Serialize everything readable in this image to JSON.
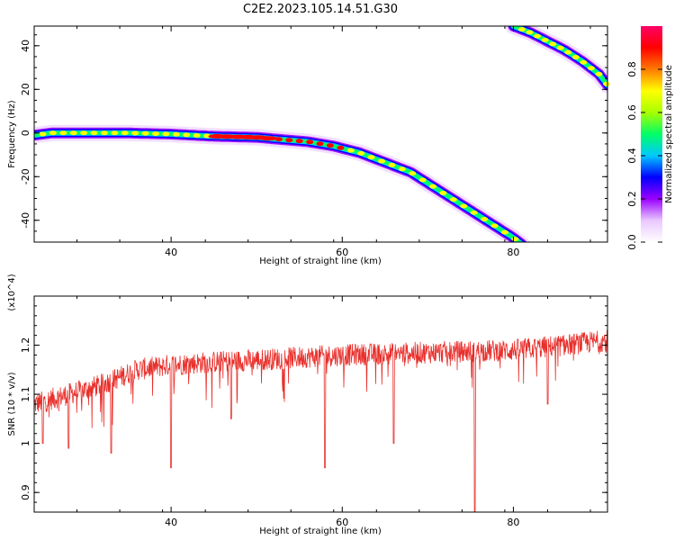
{
  "title": "C2E2.2023.105.14.51.G30",
  "chart_data": [
    {
      "type": "heatmap",
      "xlabel": "Height of straight line (km)",
      "ylabel": "Frequency (Hz)",
      "xlim": [
        24,
        91
      ],
      "ylim": [
        -50,
        49
      ],
      "x_ticks": [
        40,
        60,
        80
      ],
      "y_ticks": [
        40,
        20,
        0,
        -20,
        -40
      ],
      "colorbar": {
        "label": "Normalized spectral amplitude",
        "range": [
          0.0,
          1.0
        ],
        "ticks": [
          "0.0",
          "0.2",
          "0.4",
          "0.6",
          "0.8"
        ],
        "colormap": [
          "#ffffff",
          "#e9c8ff",
          "#9a00ff",
          "#0000ff",
          "#00c8ff",
          "#00ff66",
          "#a8ff00",
          "#ffff00",
          "#ff7a00",
          "#ff0000",
          "#ff0066"
        ]
      },
      "traces": [
        {
          "name": "",
          "points": [
            [
              24,
              -1
            ],
            [
              26,
              0
            ],
            [
              30,
              0
            ],
            [
              35,
              0
            ],
            [
              40,
              -0.5
            ],
            [
              45,
              -1.5
            ],
            [
              50,
              -2
            ],
            [
              53,
              -3
            ],
            [
              56,
              -4
            ],
            [
              59,
              -6
            ],
            [
              62,
              -9
            ],
            [
              64,
              -12
            ],
            [
              66,
              -15
            ],
            [
              68,
              -18
            ],
            [
              70,
              -23
            ],
            [
              72,
              -28
            ],
            [
              74,
              -33
            ],
            [
              76,
              -38
            ],
            [
              78,
              -43
            ],
            [
              80,
              -48
            ],
            [
              81,
              -51
            ]
          ]
        },
        {
          "name": "",
          "points": [
            [
              80,
              49
            ],
            [
              82,
              46
            ],
            [
              84,
              42
            ],
            [
              86,
              38
            ],
            [
              88,
              33
            ],
            [
              90,
              27
            ],
            [
              91,
              22
            ]
          ]
        }
      ]
    },
    {
      "type": "line",
      "xlabel": "Height of straight line (km)",
      "ylabel": "SNR (10 * v/v)",
      "scale_label": "(x10^4)",
      "xlim": [
        24,
        91
      ],
      "ylim": [
        0.86,
        1.3
      ],
      "x_ticks": [
        40,
        60,
        80
      ],
      "y_ticks": [
        0.9,
        1.0,
        1.1,
        1.2
      ],
      "series": [
        {
          "name": "",
          "color": "#e8302c",
          "baseline": [
            [
              24,
              1.08
            ],
            [
              28,
              1.1
            ],
            [
              32,
              1.12
            ],
            [
              36,
              1.15
            ],
            [
              40,
              1.16
            ],
            [
              44,
              1.165
            ],
            [
              50,
              1.17
            ],
            [
              60,
              1.18
            ],
            [
              70,
              1.185
            ],
            [
              80,
              1.19
            ],
            [
              86,
              1.2
            ],
            [
              91,
              1.21
            ]
          ],
          "dips": [
            [
              25,
              1.0
            ],
            [
              28,
              0.99
            ],
            [
              33,
              0.98
            ],
            [
              40,
              0.95
            ],
            [
              47,
              1.05
            ],
            [
              58,
              0.95
            ],
            [
              66,
              1.0
            ],
            [
              75.5,
              0.86
            ],
            [
              84,
              1.08
            ]
          ]
        }
      ]
    }
  ]
}
